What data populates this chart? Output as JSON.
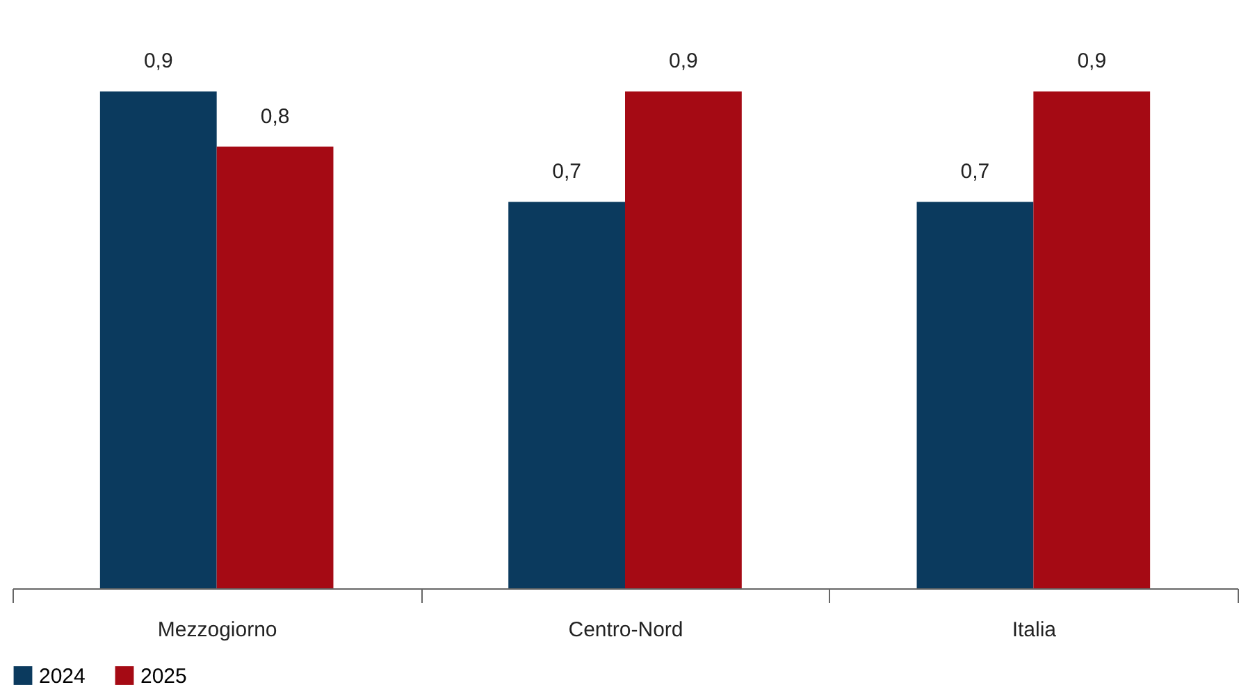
{
  "chart_data": {
    "type": "bar",
    "categories": [
      "Mezzogiorno",
      "Centro-Nord",
      "Italia"
    ],
    "series": [
      {
        "name": "2024",
        "color": "#0b3a5e",
        "values": [
          0.9,
          0.7,
          0.7
        ],
        "value_labels": [
          "0,9",
          "0,7",
          "0,7"
        ]
      },
      {
        "name": "2025",
        "color": "#a50a14",
        "values": [
          0.8,
          0.9,
          0.9
        ],
        "value_labels": [
          "0,8",
          "0,9",
          "0,9"
        ]
      }
    ],
    "legend": "bottom",
    "grid": false
  }
}
